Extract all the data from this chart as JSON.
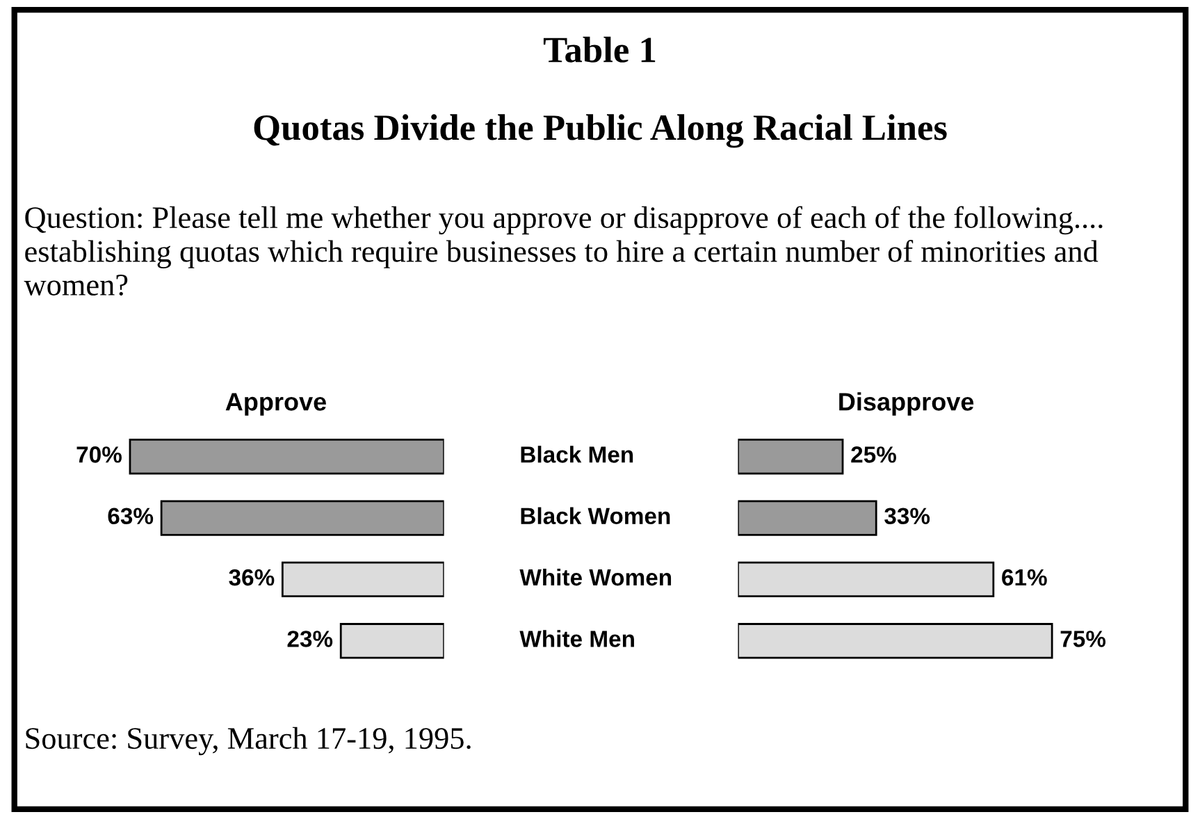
{
  "chart_data": [
    {
      "type": "other",
      "title": "Table 1",
      "subtitle": "Quotas Divide the Public Along Racial Lines",
      "annotations": [
        "Question: Please tell me whether you approve or disapprove of each of the following.... establishing quotas which require businesses to hire a certain number of minorities and women?",
        "Source: Survey, March 17-19, 1995."
      ]
    },
    {
      "type": "bar",
      "orientation": "horizontal",
      "title": "Approve",
      "categories": [
        null,
        null,
        null,
        null
      ],
      "values": [
        70,
        63,
        36,
        23
      ],
      "value_labels": [
        "70%",
        "63%",
        "36%",
        "23%"
      ],
      "colors": [
        "#9a9a9a",
        "#9a9a9a",
        "#dcdcdc",
        "#dcdcdc"
      ]
    },
    {
      "type": "bar",
      "orientation": "horizontal",
      "title": "Disapprove",
      "categories": [
        "Black Men",
        "Black Women",
        "White Women",
        "White Men"
      ],
      "values": [
        25,
        33,
        61,
        75
      ],
      "value_labels": [
        "25%",
        "33%",
        "61%",
        "75%"
      ],
      "colors": [
        "#9a9a9a",
        "#9a9a9a",
        "#dcdcdc",
        "#dcdcdc"
      ]
    }
  ]
}
